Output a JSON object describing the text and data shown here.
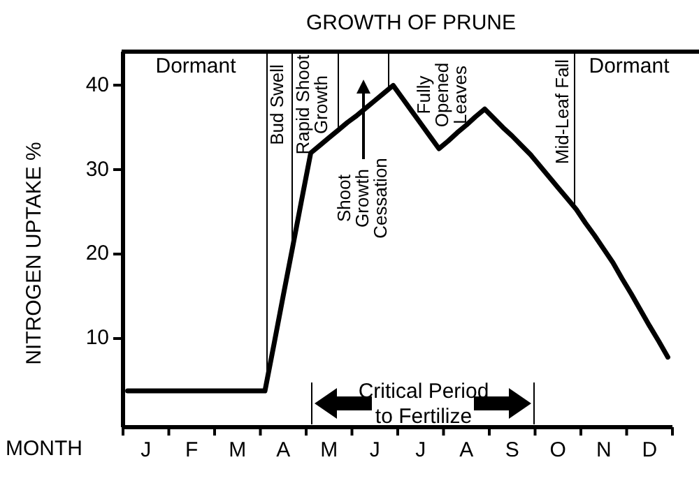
{
  "chart_data": {
    "type": "line",
    "title": "GROWTH OF PRUNE",
    "xlabel": "MONTH",
    "ylabel": "NITROGEN UPTAKE %",
    "categories": [
      null,
      null,
      "J",
      null,
      null,
      null,
      null,
      "F",
      null,
      null,
      null,
      null,
      "M",
      null,
      null,
      null,
      null,
      "A",
      null,
      null,
      null,
      null,
      "M",
      null,
      null,
      null,
      null,
      "J",
      null,
      null,
      null,
      null,
      "J",
      null,
      null,
      null,
      null,
      "A",
      null,
      null,
      null,
      null,
      "S",
      null,
      null,
      null,
      null,
      "O",
      null,
      null,
      null,
      null,
      "N",
      null,
      null,
      null,
      null,
      "D",
      null,
      null
    ],
    "series": [
      {
        "color": "#000000",
        "values": [
          3.8,
          3.8,
          3.8,
          3.8,
          3.8,
          3.8,
          3.8,
          3.8,
          3.8,
          3.8,
          3.8,
          3.8,
          3.8,
          3.8,
          3.8,
          3.8,
          9.4,
          15.1,
          20.7,
          26.4,
          32,
          32.9,
          33.8,
          34.7,
          35.6,
          36.4,
          37.3,
          38.2,
          39.1,
          40,
          38.5,
          37,
          35.5,
          34,
          32.5,
          33.4,
          34.4,
          35.3,
          36.3,
          37.2,
          36.1,
          35,
          34,
          32.9,
          31.8,
          30.5,
          29.2,
          27.9,
          26.6,
          25.3,
          23.7,
          22.2,
          20.6,
          19,
          17.1,
          15.3,
          13.4,
          11.5,
          9.7,
          7.8
        ]
      }
    ],
    "ylim": [
      -0.5,
      44
    ],
    "yticks": [
      10,
      20,
      30,
      40
    ],
    "grid": false,
    "legend": false,
    "marker": "none",
    "line_style": "solid",
    "annotations": [
      "Dormant",
      "Bud Swell",
      "Rapid Shoot\nGrowth",
      "Shoot\nGrowth\nCessation",
      "Fully\nOpened\nLeaves",
      "Mid-Leaf Fall",
      "Dormant",
      "Critical Period\nto Fertilize"
    ]
  }
}
